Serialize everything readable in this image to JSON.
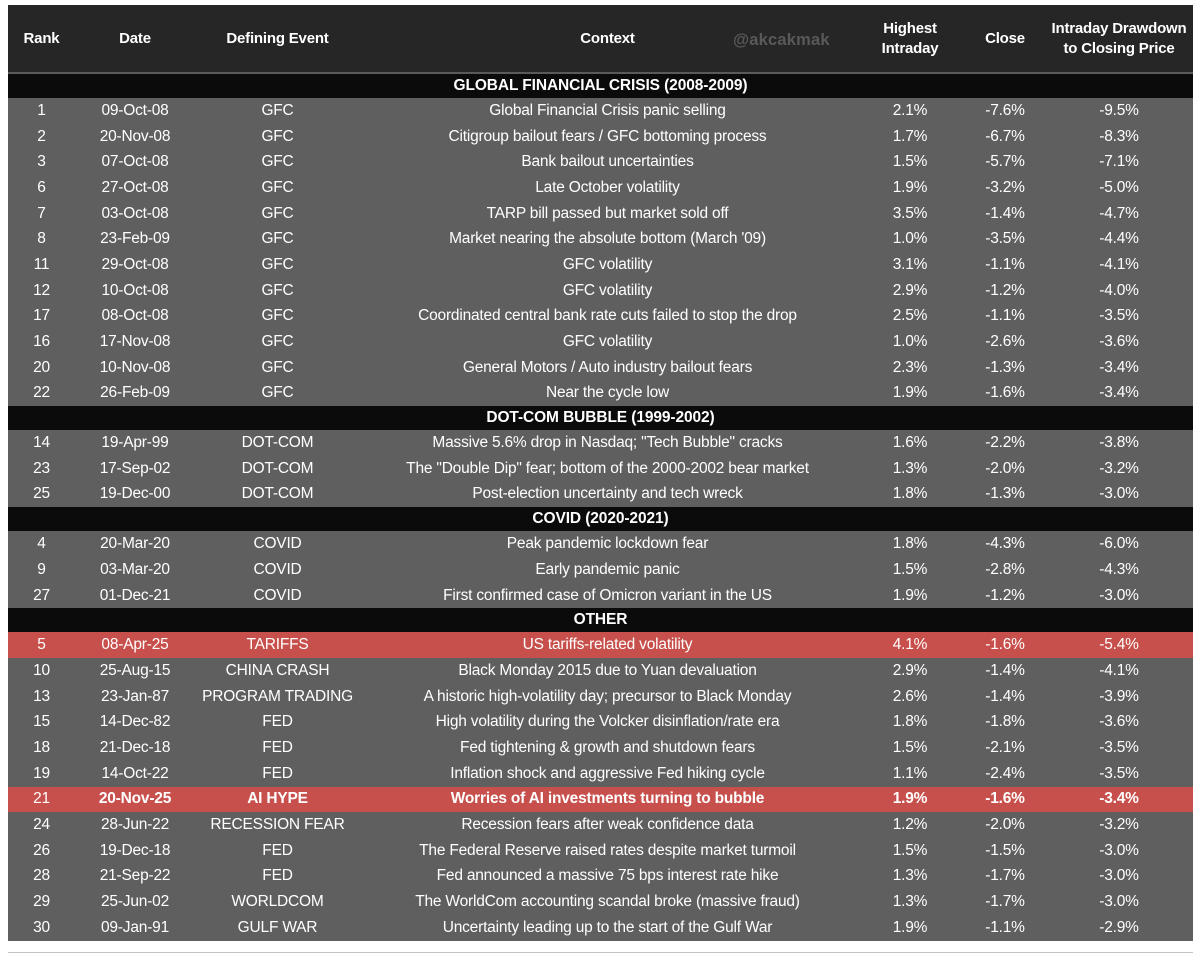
{
  "watermark": "@akcakmak",
  "colors": {
    "header_bg": "#262626",
    "section_bg": "#0b0b0b",
    "row_bg": "#5f5f5f",
    "highlight_bg": "#c7504c",
    "text": "#ffffff",
    "watermark_text": "#595959"
  },
  "chart_data": {
    "type": "table",
    "columns": [
      "Rank",
      "Date",
      "Defining Event",
      "Context",
      "Highest Intraday",
      "Close",
      "Intraday Drawdown to Closing Price"
    ],
    "sections": [
      {
        "title": "GLOBAL FINANCIAL CRISIS (2008-2009)",
        "rows": [
          {
            "rank": "1",
            "date": "09-Oct-08",
            "event": "GFC",
            "context": "Global Financial Crisis panic selling",
            "intraday": "2.1%",
            "close": "-7.6%",
            "drawdown": "-9.5%",
            "highlight": false,
            "bold": false
          },
          {
            "rank": "2",
            "date": "20-Nov-08",
            "event": "GFC",
            "context": "Citigroup bailout fears / GFC bottoming process",
            "intraday": "1.7%",
            "close": "-6.7%",
            "drawdown": "-8.3%",
            "highlight": false,
            "bold": false
          },
          {
            "rank": "3",
            "date": "07-Oct-08",
            "event": "GFC",
            "context": "Bank bailout uncertainties",
            "intraday": "1.5%",
            "close": "-5.7%",
            "drawdown": "-7.1%",
            "highlight": false,
            "bold": false
          },
          {
            "rank": "6",
            "date": "27-Oct-08",
            "event": "GFC",
            "context": "Late October volatility",
            "intraday": "1.9%",
            "close": "-3.2%",
            "drawdown": "-5.0%",
            "highlight": false,
            "bold": false
          },
          {
            "rank": "7",
            "date": "03-Oct-08",
            "event": "GFC",
            "context": "TARP bill passed but market sold off",
            "intraday": "3.5%",
            "close": "-1.4%",
            "drawdown": "-4.7%",
            "highlight": false,
            "bold": false
          },
          {
            "rank": "8",
            "date": "23-Feb-09",
            "event": "GFC",
            "context": "Market nearing the absolute bottom (March '09)",
            "intraday": "1.0%",
            "close": "-3.5%",
            "drawdown": "-4.4%",
            "highlight": false,
            "bold": false
          },
          {
            "rank": "11",
            "date": "29-Oct-08",
            "event": "GFC",
            "context": "GFC volatility",
            "intraday": "3.1%",
            "close": "-1.1%",
            "drawdown": "-4.1%",
            "highlight": false,
            "bold": false
          },
          {
            "rank": "12",
            "date": "10-Oct-08",
            "event": "GFC",
            "context": "GFC volatility",
            "intraday": "2.9%",
            "close": "-1.2%",
            "drawdown": "-4.0%",
            "highlight": false,
            "bold": false
          },
          {
            "rank": "17",
            "date": "08-Oct-08",
            "event": "GFC",
            "context": "Coordinated central bank rate cuts failed to stop the drop",
            "intraday": "2.5%",
            "close": "-1.1%",
            "drawdown": "-3.5%",
            "highlight": false,
            "bold": false
          },
          {
            "rank": "16",
            "date": "17-Nov-08",
            "event": "GFC",
            "context": "GFC volatility",
            "intraday": "1.0%",
            "close": "-2.6%",
            "drawdown": "-3.6%",
            "highlight": false,
            "bold": false
          },
          {
            "rank": "20",
            "date": "10-Nov-08",
            "event": "GFC",
            "context": "General Motors / Auto industry bailout fears",
            "intraday": "2.3%",
            "close": "-1.3%",
            "drawdown": "-3.4%",
            "highlight": false,
            "bold": false
          },
          {
            "rank": "22",
            "date": "26-Feb-09",
            "event": "GFC",
            "context": "Near the cycle low",
            "intraday": "1.9%",
            "close": "-1.6%",
            "drawdown": "-3.4%",
            "highlight": false,
            "bold": false
          }
        ]
      },
      {
        "title": "DOT-COM BUBBLE (1999-2002)",
        "rows": [
          {
            "rank": "14",
            "date": "19-Apr-99",
            "event": "DOT-COM",
            "context": "Massive 5.6% drop in Nasdaq; \"Tech Bubble\" cracks",
            "intraday": "1.6%",
            "close": "-2.2%",
            "drawdown": "-3.8%",
            "highlight": false,
            "bold": false
          },
          {
            "rank": "23",
            "date": "17-Sep-02",
            "event": "DOT-COM",
            "context": "The \"Double Dip\" fear; bottom of the 2000-2002 bear market",
            "intraday": "1.3%",
            "close": "-2.0%",
            "drawdown": "-3.2%",
            "highlight": false,
            "bold": false
          },
          {
            "rank": "25",
            "date": "19-Dec-00",
            "event": "DOT-COM",
            "context": "Post-election uncertainty and tech wreck",
            "intraday": "1.8%",
            "close": "-1.3%",
            "drawdown": "-3.0%",
            "highlight": false,
            "bold": false
          }
        ]
      },
      {
        "title": "COVID (2020-2021)",
        "rows": [
          {
            "rank": "4",
            "date": "20-Mar-20",
            "event": "COVID",
            "context": "Peak pandemic lockdown fear",
            "intraday": "1.8%",
            "close": "-4.3%",
            "drawdown": "-6.0%",
            "highlight": false,
            "bold": false
          },
          {
            "rank": "9",
            "date": "03-Mar-20",
            "event": "COVID",
            "context": "Early pandemic panic",
            "intraday": "1.5%",
            "close": "-2.8%",
            "drawdown": "-4.3%",
            "highlight": false,
            "bold": false
          },
          {
            "rank": "27",
            "date": "01-Dec-21",
            "event": "COVID",
            "context": "First confirmed case of Omicron variant in the US",
            "intraday": "1.9%",
            "close": "-1.2%",
            "drawdown": "-3.0%",
            "highlight": false,
            "bold": false
          }
        ]
      },
      {
        "title": "OTHER",
        "rows": [
          {
            "rank": "5",
            "date": "08-Apr-25",
            "event": "TARIFFS",
            "context": "US tariffs-related volatility",
            "intraday": "4.1%",
            "close": "-1.6%",
            "drawdown": "-5.4%",
            "highlight": true,
            "bold": false
          },
          {
            "rank": "10",
            "date": "25-Aug-15",
            "event": "CHINA CRASH",
            "context": "Black Monday 2015 due to Yuan devaluation",
            "intraday": "2.9%",
            "close": "-1.4%",
            "drawdown": "-4.1%",
            "highlight": false,
            "bold": false
          },
          {
            "rank": "13",
            "date": "23-Jan-87",
            "event": "PROGRAM TRADING",
            "context": "A historic high-volatility day; precursor to Black Monday",
            "intraday": "2.6%",
            "close": "-1.4%",
            "drawdown": "-3.9%",
            "highlight": false,
            "bold": false
          },
          {
            "rank": "15",
            "date": "14-Dec-82",
            "event": "FED",
            "context": "High volatility during the Volcker disinflation/rate era",
            "intraday": "1.8%",
            "close": "-1.8%",
            "drawdown": "-3.6%",
            "highlight": false,
            "bold": false
          },
          {
            "rank": "18",
            "date": "21-Dec-18",
            "event": "FED",
            "context": "Fed tightening & growth and shutdown fears",
            "intraday": "1.5%",
            "close": "-2.1%",
            "drawdown": "-3.5%",
            "highlight": false,
            "bold": false
          },
          {
            "rank": "19",
            "date": "14-Oct-22",
            "event": "FED",
            "context": "Inflation shock and aggressive Fed hiking cycle",
            "intraday": "1.1%",
            "close": "-2.4%",
            "drawdown": "-3.5%",
            "highlight": false,
            "bold": false
          },
          {
            "rank": "21",
            "date": "20-Nov-25",
            "event": "AI HYPE",
            "context": "Worries of AI investments turning to bubble",
            "intraday": "1.9%",
            "close": "-1.6%",
            "drawdown": "-3.4%",
            "highlight": true,
            "bold": true
          },
          {
            "rank": "24",
            "date": "28-Jun-22",
            "event": "RECESSION FEAR",
            "context": "Recession fears after weak confidence data",
            "intraday": "1.2%",
            "close": "-2.0%",
            "drawdown": "-3.2%",
            "highlight": false,
            "bold": false
          },
          {
            "rank": "26",
            "date": "19-Dec-18",
            "event": "FED",
            "context": "The Federal Reserve raised rates despite market turmoil",
            "intraday": "1.5%",
            "close": "-1.5%",
            "drawdown": "-3.0%",
            "highlight": false,
            "bold": false
          },
          {
            "rank": "28",
            "date": "21-Sep-22",
            "event": "FED",
            "context": "Fed announced a massive 75 bps interest rate hike",
            "intraday": "1.3%",
            "close": "-1.7%",
            "drawdown": "-3.0%",
            "highlight": false,
            "bold": false
          },
          {
            "rank": "29",
            "date": "25-Jun-02",
            "event": "WORLDCOM",
            "context": "The WorldCom accounting scandal broke (massive fraud)",
            "intraday": "1.3%",
            "close": "-1.7%",
            "drawdown": "-3.0%",
            "highlight": false,
            "bold": false
          },
          {
            "rank": "30",
            "date": "09-Jan-91",
            "event": "GULF WAR",
            "context": "Uncertainty leading up to the start of the Gulf War",
            "intraday": "1.9%",
            "close": "-1.1%",
            "drawdown": "-2.9%",
            "highlight": false,
            "bold": false
          }
        ]
      }
    ]
  }
}
